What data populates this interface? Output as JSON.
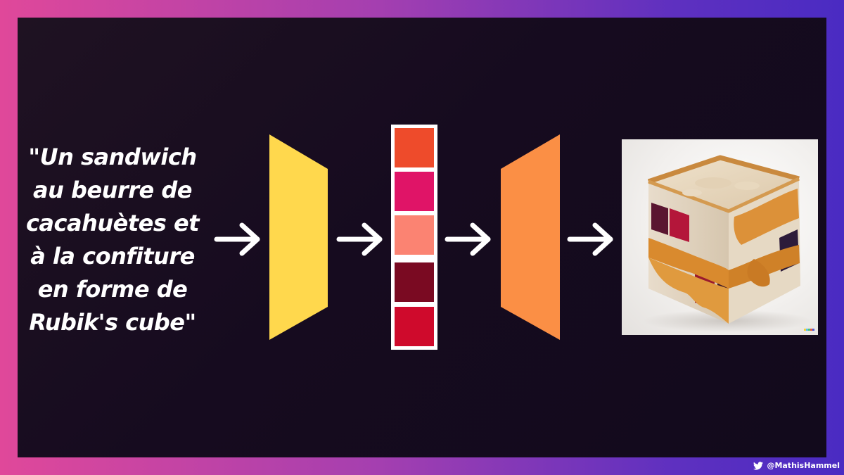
{
  "prompt": {
    "lines": [
      "\"Un sandwich",
      "au beurre de",
      "cacahuètes et",
      "à la confiture",
      "en forme de",
      "Rubik's cube\""
    ]
  },
  "colors": {
    "encoder": "#ffd84d",
    "decoder": "#fb8f45",
    "arrow": "#ffffff",
    "latent_cells": [
      "#ee4b2b",
      "#e01467",
      "#fb8372",
      "#7a0a22",
      "#cf0a2c"
    ]
  },
  "icons": {
    "encoder": "trapezoid-encoder-shape",
    "decoder": "trapezoid-decoder-shape",
    "arrow": "right-arrow-icon",
    "twitter": "twitter-bird-icon"
  },
  "signature": {
    "handle": "@MathisHammel"
  }
}
